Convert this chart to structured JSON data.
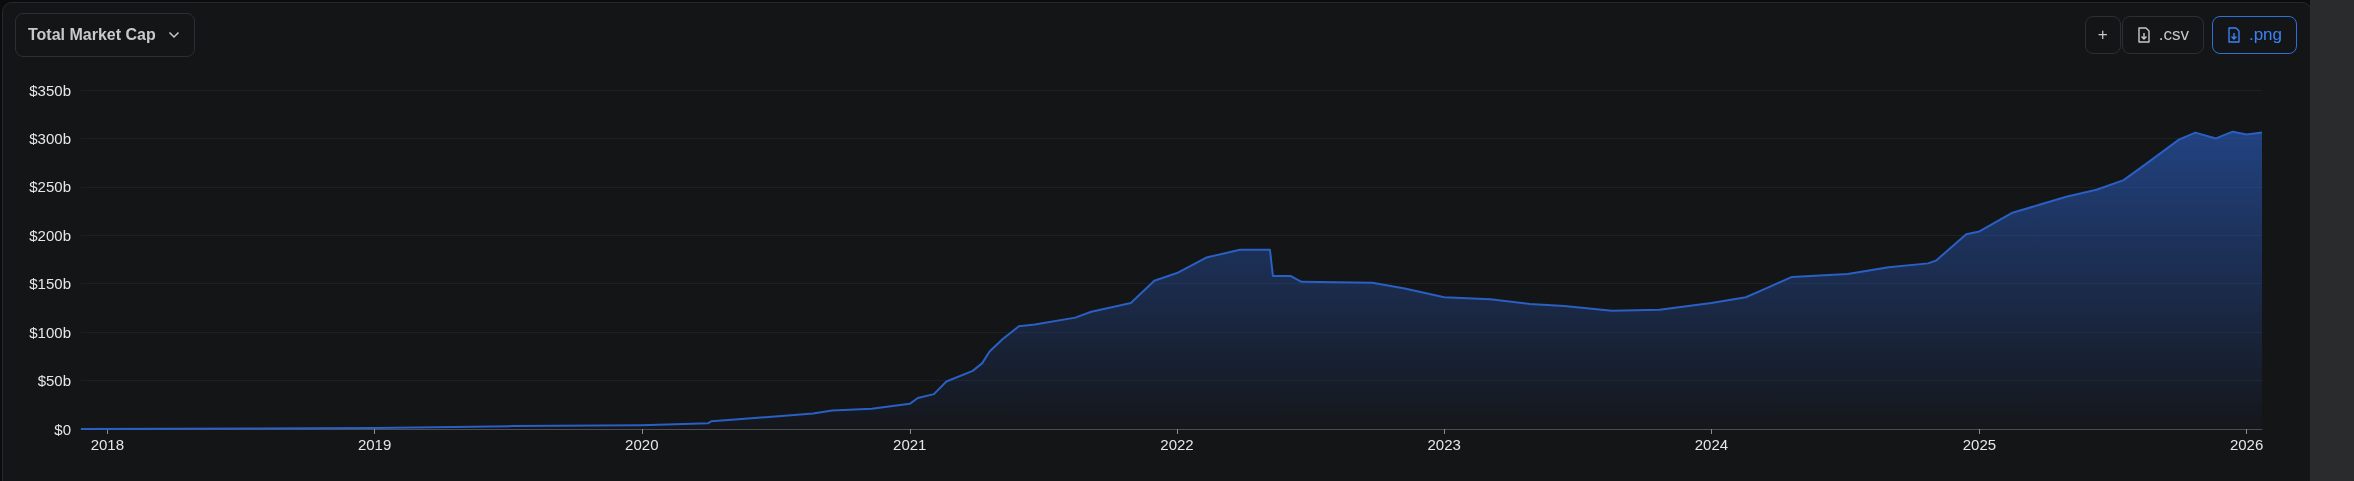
{
  "chart_data": {
    "type": "area",
    "title": "Total Market Cap",
    "annotations": [
      "+",
      ".csv",
      ".png"
    ],
    "x": [
      "2017-11-26",
      "2019-01-01",
      "2019-04-20",
      "2019-07-08",
      "2020-01-01",
      "2020-04-01",
      "2020-04-05",
      "2020-05-12",
      "2020-07-01",
      "2020-08-22",
      "2020-09-17",
      "2020-11-10",
      "2021-01-01",
      "2021-01-12",
      "2021-02-03",
      "2021-02-20",
      "2021-03-28",
      "2021-04-10",
      "2021-04-20",
      "2021-05-08",
      "2021-05-30",
      "2021-06-21",
      "2021-08-15",
      "2021-09-06",
      "2021-10-30",
      "2021-12-01",
      "2022-01-01",
      "2022-02-10",
      "2022-03-28",
      "2022-05-08",
      "2022-05-12",
      "2022-06-05",
      "2022-06-20",
      "2022-09-25",
      "2022-11-08",
      "2023-01-01",
      "2023-03-05",
      "2023-04-28",
      "2023-06-14",
      "2023-08-18",
      "2023-10-22",
      "2024-01-01",
      "2024-02-17",
      "2024-03-18",
      "2024-04-20",
      "2024-07-05",
      "2024-08-30",
      "2024-10-23",
      "2024-11-03",
      "2024-12-14",
      "2025-01-01",
      "2025-02-14",
      "2025-03-26",
      "2025-05-01",
      "2025-06-10",
      "2025-07-17",
      "2025-08-19",
      "2025-10-01",
      "2025-10-23",
      "2025-11-20",
      "2025-12-13",
      "2026-01-01",
      "2026-01-22"
    ],
    "values": [
      0,
      1,
      2,
      3,
      4,
      6,
      8,
      10,
      13,
      16,
      19,
      21,
      26,
      32,
      36,
      49,
      60,
      68,
      80,
      93,
      106,
      108,
      115,
      121,
      130,
      153,
      161,
      177,
      185,
      185,
      158,
      158,
      152,
      151,
      145,
      136,
      134,
      129,
      127,
      122,
      123,
      130,
      136,
      146,
      157,
      160,
      167,
      171,
      174,
      201,
      204,
      223,
      232,
      240,
      247,
      257,
      275,
      299,
      306,
      300,
      307,
      304,
      306
    ],
    "color": "#2a5fc4",
    "xlim": [
      "2017-11-26",
      "2026-01-22"
    ],
    "xticks": [
      "2018",
      "2019",
      "2020",
      "2021",
      "2022",
      "2023",
      "2024",
      "2025",
      "2026"
    ],
    "ylim": [
      0,
      350
    ],
    "yticks": [
      {
        "value": 0,
        "label": "$0"
      },
      {
        "value": 50,
        "label": "$50b"
      },
      {
        "value": 100,
        "label": "$100b"
      },
      {
        "value": 150,
        "label": "$150b"
      },
      {
        "value": 200,
        "label": "$200b"
      },
      {
        "value": 250,
        "label": "$250b"
      },
      {
        "value": 300,
        "label": "$300b"
      },
      {
        "value": 350,
        "label": "$350b"
      }
    ],
    "grid": "y"
  }
}
